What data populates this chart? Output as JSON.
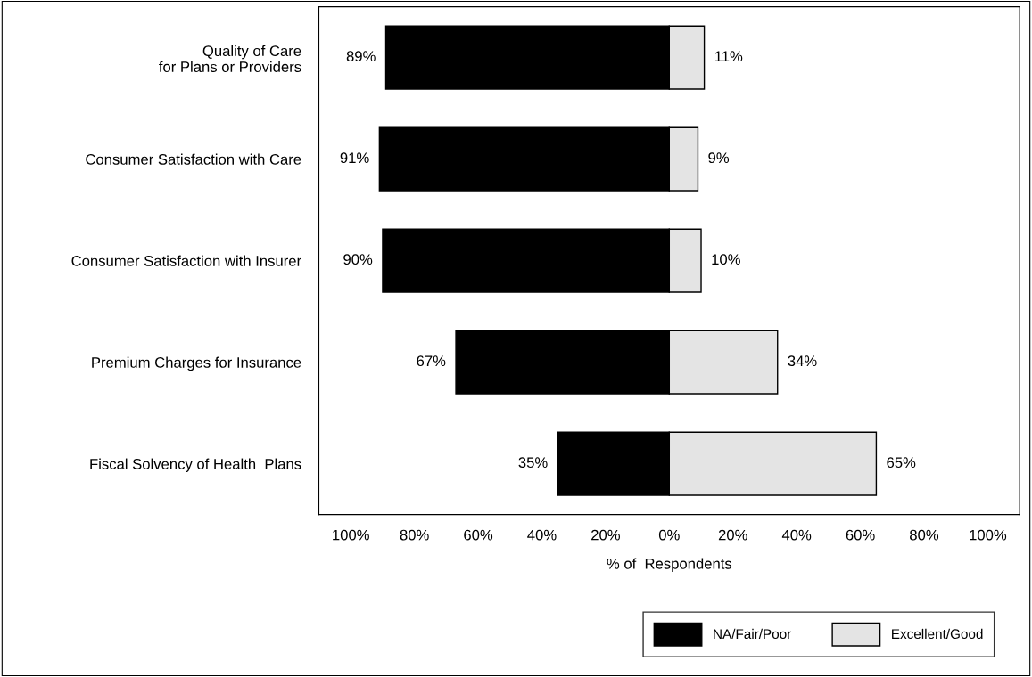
{
  "chart_data": {
    "type": "bar",
    "orientation": "horizontal",
    "stacked": true,
    "categories": [
      "Quality of Care\nfor Plans or Providers",
      "Consumer Satisfaction with Care",
      "Consumer Satisfaction with Insurer",
      "Premium Charges for Insurance",
      "Fiscal Solvency of Health  Plans"
    ],
    "series": [
      {
        "name": "NA/Fair/Poor",
        "color": "#000000",
        "base": [
          -89,
          -91,
          -90,
          -67,
          -35
        ],
        "values": [
          89,
          91,
          90,
          67,
          35
        ],
        "value_labels": [
          "89%",
          "91%",
          "90%",
          "67%",
          "35%"
        ]
      },
      {
        "name": "Excellent/Good",
        "color": "#e4e4e4",
        "values": [
          11,
          9,
          10,
          34,
          65
        ],
        "value_labels": [
          "11%",
          "9%",
          "10%",
          "34%",
          "65%"
        ]
      }
    ],
    "xlabel": "% of  Respondents",
    "xlim": [
      -110,
      110
    ],
    "xticks": [
      {
        "value": -100,
        "label": "100%"
      },
      {
        "value": -80,
        "label": "80%"
      },
      {
        "value": -60,
        "label": "60%"
      },
      {
        "value": -40,
        "label": "40%"
      },
      {
        "value": -20,
        "label": "20%"
      },
      {
        "value": 0,
        "label": "0%"
      },
      {
        "value": 20,
        "label": "20%"
      },
      {
        "value": 40,
        "label": "40%"
      },
      {
        "value": 60,
        "label": "60%"
      },
      {
        "value": 80,
        "label": "80%"
      },
      {
        "value": 100,
        "label": "100%"
      }
    ],
    "grid": false,
    "legend": "bottom right"
  }
}
